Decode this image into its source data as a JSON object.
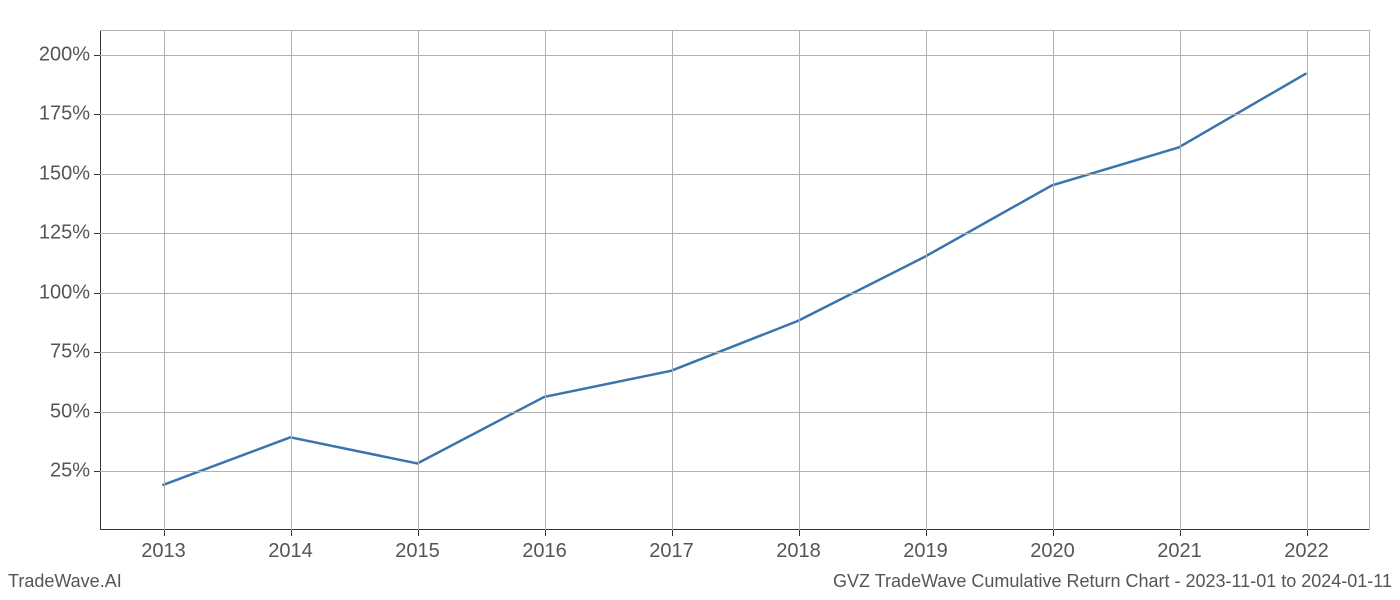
{
  "chart": {
    "type": "line",
    "background_color": "#ffffff",
    "grid_color": "#b0b0b0",
    "axis_color": "#333333",
    "tick_label_color": "#555555",
    "tick_label_fontsize": 20,
    "line_color": "#3a74ad",
    "line_width": 2.5,
    "x_values": [
      2013,
      2014,
      2015,
      2016,
      2017,
      2018,
      2019,
      2020,
      2021,
      2022
    ],
    "y_values": [
      19,
      39,
      28,
      56,
      67,
      88,
      115,
      145,
      161,
      192
    ],
    "xlim": [
      2012.5,
      2022.5
    ],
    "ylim": [
      0,
      210
    ],
    "x_ticks": [
      2013,
      2014,
      2015,
      2016,
      2017,
      2018,
      2019,
      2020,
      2021,
      2022
    ],
    "x_tick_labels": [
      "2013",
      "2014",
      "2015",
      "2016",
      "2017",
      "2018",
      "2019",
      "2020",
      "2021",
      "2022"
    ],
    "y_ticks": [
      25,
      50,
      75,
      100,
      125,
      150,
      175,
      200
    ],
    "y_tick_labels": [
      "25%",
      "50%",
      "75%",
      "100%",
      "125%",
      "150%",
      "175%",
      "200%"
    ]
  },
  "footer": {
    "left_text": "TradeWave.AI",
    "right_text": "GVZ TradeWave Cumulative Return Chart - 2023-11-01 to 2024-01-11",
    "fontsize": 18,
    "color": "#555555"
  }
}
